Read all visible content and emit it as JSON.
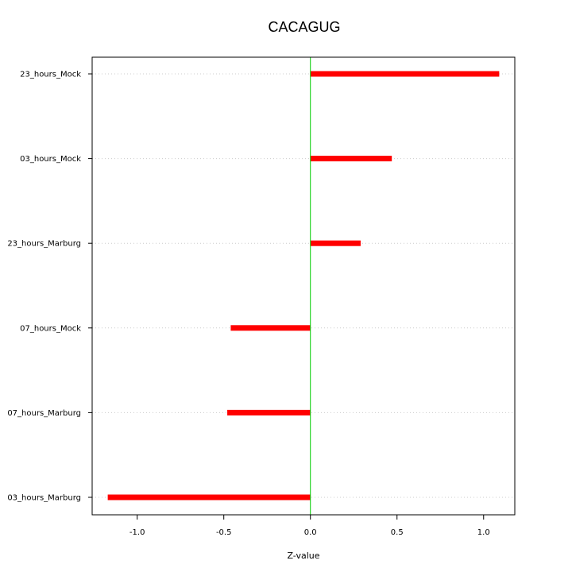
{
  "chart_data": {
    "type": "bar",
    "orientation": "horizontal",
    "title": "CACAGUG",
    "xlabel": "Z-value",
    "ylabel": "",
    "categories": [
      "23_hours_Mock",
      "03_hours_Mock",
      "23_hours_Marburg",
      "07_hours_Mock",
      "07_hours_Marburg",
      "03_hours_Marburg"
    ],
    "values": [
      1.09,
      0.47,
      0.29,
      -0.46,
      -0.48,
      -1.17
    ],
    "xlim": [
      -1.26,
      1.18
    ],
    "xticks": [
      -1.0,
      -0.5,
      0.0,
      0.5,
      1.0
    ],
    "xtick_labels": [
      "-1.0",
      "-0.5",
      "0.0",
      "0.5",
      "1.0"
    ],
    "grid": "horizontal dotted at each category",
    "reference_line": 0,
    "colors": {
      "bar": "#ff0000",
      "reference_line": "#00cc00",
      "grid": "#cccccc",
      "axis": "#000000"
    }
  }
}
